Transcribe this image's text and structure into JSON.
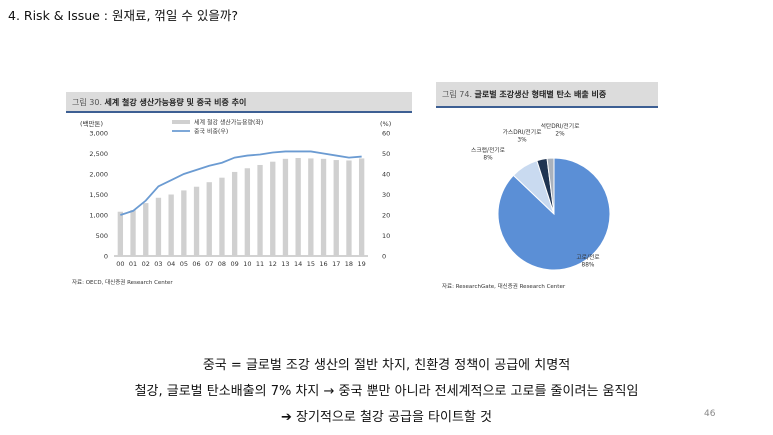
{
  "slide": {
    "title": "4. Risk & Issue : 원재료, 꺾일 수 있을까?",
    "page_number": "46"
  },
  "left_panel": {
    "figure_num": "그림 30.",
    "figure_title": "세계 철강 생산가능용량 및 중국 비중 추이",
    "source": "자료: OECD, 대신증권 Research Center"
  },
  "right_panel": {
    "figure_num": "그림 74.",
    "figure_title": "글로벌 조강생산 형태별 탄소 배출 비중",
    "source": "자료: ResearchGate, 대신증권 Research Center"
  },
  "bottom_text": {
    "line1": "중국 = 글로벌 조강 생산의 절반 차지, 친환경 정책이 공급에 치명적",
    "line2": "철강, 글로벌 탄소배출의 7% 차지 → 중국 뿐만 아니라 전세계적으로 고로를 줄이려는 움직임",
    "line3": "➔ 장기적으로 철강 공급을 타이트할 것"
  },
  "chart_data": [
    {
      "type": "bar",
      "left_unit": "(백만톤)",
      "right_unit": "(%)",
      "categories": [
        "00",
        "01",
        "02",
        "03",
        "04",
        "05",
        "06",
        "07",
        "08",
        "09",
        "10",
        "11",
        "12",
        "13",
        "14",
        "15",
        "16",
        "17",
        "18",
        "19"
      ],
      "ylim": [
        0,
        3000
      ],
      "y_ticks": [
        "0",
        "500",
        "1,000",
        "1,500",
        "2,000",
        "2,500",
        "3,000"
      ],
      "y2lim": [
        0,
        60
      ],
      "y2_ticks": [
        "0",
        "10",
        "20",
        "30",
        "40",
        "50",
        "60"
      ],
      "legend_position": "top-center",
      "series": [
        {
          "name": "세계 철강 생산가능용량(좌)",
          "type": "bar",
          "axis": "left",
          "color": "#d0d0d0",
          "values": [
            1080,
            1120,
            1290,
            1420,
            1500,
            1600,
            1690,
            1800,
            1910,
            2050,
            2140,
            2220,
            2300,
            2370,
            2390,
            2380,
            2370,
            2340,
            2330,
            2380
          ]
        },
        {
          "name": "중국 비중(우)",
          "type": "line",
          "axis": "right",
          "color": "#6b9bd2",
          "values": [
            20,
            22,
            27,
            34,
            37,
            40,
            42,
            44,
            45.5,
            48,
            49,
            49.5,
            50.5,
            51,
            51,
            51,
            50,
            49,
            48,
            48.5
          ]
        }
      ]
    },
    {
      "type": "pie",
      "slices": [
        {
          "label": "고로/전로",
          "value": 88,
          "display": "88%",
          "color": "#5b8fd6"
        },
        {
          "label": "스크랩/전기로",
          "value": 8,
          "display": "8%",
          "color": "#c9daf0"
        },
        {
          "label": "가스DRI/전기로",
          "value": 3,
          "display": "3%",
          "color": "#1f3452"
        },
        {
          "label": "석탄DRI/전기로",
          "value": 2,
          "display": "2%",
          "color": "#aab2bd"
        }
      ]
    }
  ]
}
